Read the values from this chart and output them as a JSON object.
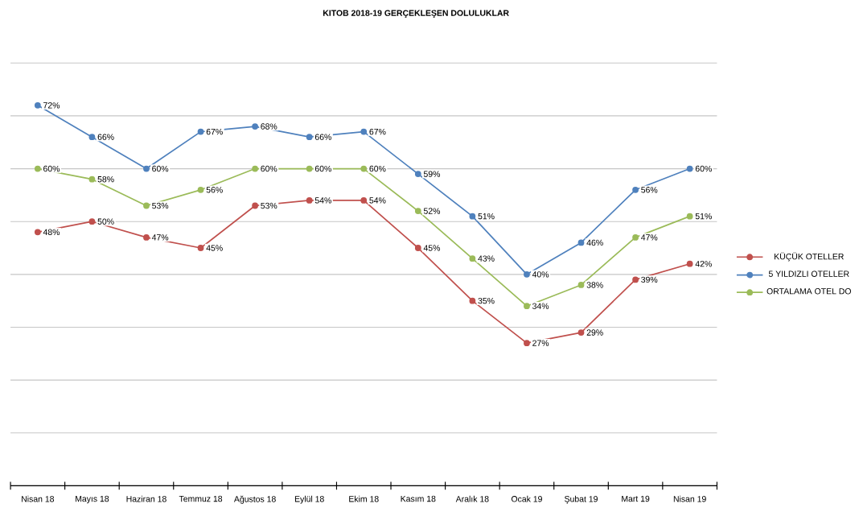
{
  "chart_data": {
    "type": "line",
    "title": "KITOB  2018-19 GERÇEKLEŞEN  DOLULUKLAR",
    "categories": [
      "Nisan 18",
      "Mayıs 18",
      "Haziran 18",
      "Temmuz 18",
      "Ağustos 18",
      "Eylül 18",
      "Ekim 18",
      "Kasım 18",
      "Aralık 18",
      "Ocak 19",
      "Şubat 19",
      "Mart 19",
      "Nisan 19"
    ],
    "series": [
      {
        "name": "KÜÇÜK OTELLER",
        "color": "#c0504d",
        "values": [
          48,
          50,
          47,
          45,
          53,
          54,
          54,
          45,
          35,
          27,
          29,
          39,
          42
        ],
        "value_labels": [
          "48%",
          "50%",
          "47%",
          "45%",
          "53%",
          "54%",
          "54%",
          "45%",
          "35%",
          "27%",
          "29%",
          "39%",
          "42%"
        ]
      },
      {
        "name": "5 YILDIZLI OTELLER",
        "color": "#4f81bd",
        "values": [
          72,
          66,
          60,
          67,
          68,
          66,
          67,
          59,
          51,
          40,
          46,
          56,
          60
        ],
        "value_labels": [
          "72%",
          "66%",
          "60%",
          "67%",
          "68%",
          "66%",
          "67%",
          "59%",
          "51%",
          "40%",
          "46%",
          "56%",
          "60%"
        ]
      },
      {
        "name": "ORTALAMA OTEL DO",
        "color": "#9bbb59",
        "values": [
          60,
          58,
          53,
          56,
          60,
          60,
          60,
          52,
          43,
          34,
          38,
          47,
          51
        ],
        "value_labels": [
          "60%",
          "58%",
          "53%",
          "56%",
          "60%",
          "60%",
          "60%",
          "52%",
          "43%",
          "34%",
          "38%",
          "47%",
          "51%"
        ]
      }
    ],
    "ylim": [
      0,
      80
    ],
    "yticks": [
      {
        "value": 0,
        "label": null
      },
      {
        "value": 10,
        "label": null
      },
      {
        "value": 20,
        "label": null
      },
      {
        "value": 30,
        "label": null
      },
      {
        "value": 40,
        "label": null
      },
      {
        "value": 50,
        "label": null
      },
      {
        "value": 60,
        "label": null
      },
      {
        "value": 70,
        "label": null
      },
      {
        "value": 80,
        "label": null
      }
    ],
    "tick_labels": "x",
    "grid": "y",
    "legend": "right",
    "marker": "circle",
    "line_style": "solid"
  }
}
